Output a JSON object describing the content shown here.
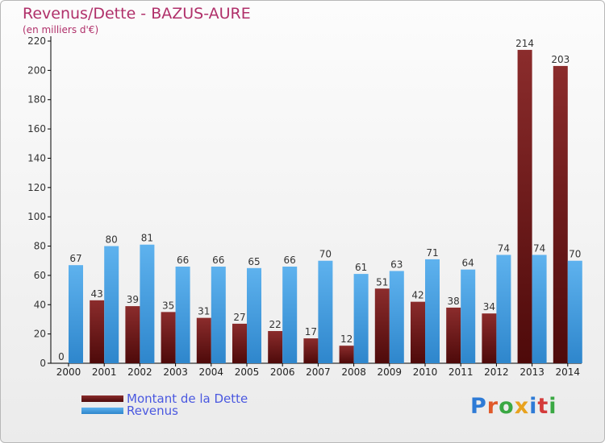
{
  "title": "Revenus/Dette - BAZUS-AURE",
  "subtitle": "(en milliers d'€)",
  "legend": {
    "debt_label": "Montant de la Dette",
    "revenue_label": "Revenus"
  },
  "logo": {
    "text": "Proxiti"
  },
  "colors": {
    "debt_top": "#8b2c2c",
    "debt_bottom": "#4e0a0a",
    "revenue_top": "#5eb2ee",
    "revenue_bottom": "#2e86cc",
    "title": "#b0306a",
    "legend_text": "#4a58e0"
  },
  "chart_data": {
    "type": "bar",
    "categories": [
      "2000",
      "2001",
      "2002",
      "2003",
      "2004",
      "2005",
      "2006",
      "2007",
      "2008",
      "2009",
      "2010",
      "2011",
      "2012",
      "2013",
      "2014"
    ],
    "series": [
      {
        "name": "Montant de la Dette",
        "values": [
          0,
          43,
          39,
          35,
          31,
          27,
          22,
          17,
          12,
          51,
          42,
          38,
          34,
          214,
          203
        ]
      },
      {
        "name": "Revenus",
        "values": [
          67,
          80,
          81,
          66,
          66,
          65,
          66,
          70,
          61,
          63,
          71,
          64,
          74,
          74,
          70
        ]
      }
    ],
    "ylim": [
      0,
      220
    ],
    "yticks": [
      0,
      20,
      40,
      60,
      80,
      100,
      120,
      140,
      160,
      180,
      200,
      220
    ],
    "grid": false,
    "legend_position": "bottom-left"
  }
}
